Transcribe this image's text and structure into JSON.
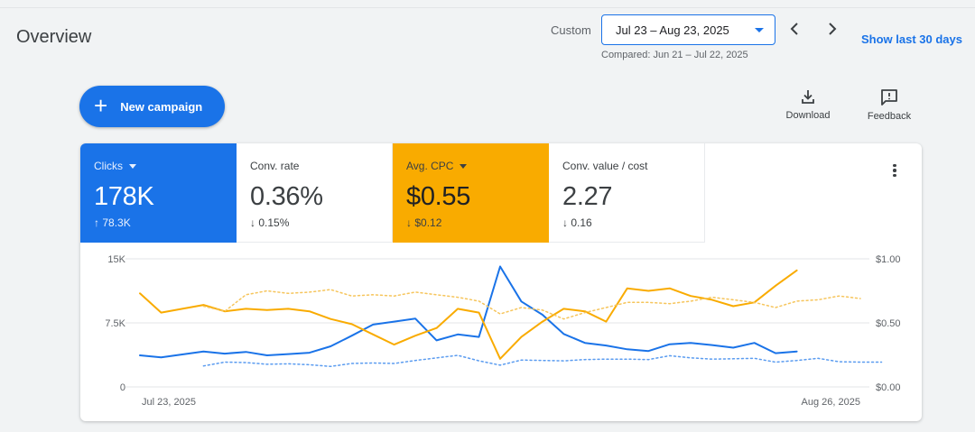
{
  "header": {
    "title": "Overview",
    "date_label": "Custom",
    "date_range": "Jul 23 – Aug 23, 2025",
    "compared": "Compared: Jun 21 – Jul 22, 2025",
    "show_last": "Show last 30 days"
  },
  "toolbar": {
    "new_campaign": "New campaign",
    "download": "Download",
    "feedback": "Feedback"
  },
  "metrics": [
    {
      "label": "Clicks",
      "value": "178K",
      "delta": "78.3K",
      "delta_dir": "up"
    },
    {
      "label": "Conv. rate",
      "value": "0.36%",
      "delta": "0.15%",
      "delta_dir": "down"
    },
    {
      "label": "Avg. CPC",
      "value": "$0.55",
      "delta": "$0.12",
      "delta_dir": "down"
    },
    {
      "label": "Conv. value / cost",
      "value": "2.27",
      "delta": "0.16",
      "delta_dir": "down"
    }
  ],
  "colors": {
    "blue": "#1a73e8",
    "blue_light": "#5b9cf0",
    "orange": "#f9ab00",
    "orange_light": "#f6c55c"
  },
  "chart_data": {
    "type": "line",
    "x_start_label": "Jul 23, 2025",
    "x_end_label": "Aug 26, 2025",
    "y_left_ticks": [
      "0",
      "7.5K",
      "15K"
    ],
    "y_left_range": [
      0,
      15000
    ],
    "y_right_ticks": [
      "$0.00",
      "$0.50",
      "$1.00"
    ],
    "y_right_range": [
      0,
      1.0
    ],
    "grid": true,
    "series": [
      {
        "axis": "left",
        "style": "solid",
        "color": "blue",
        "start_index": 0,
        "values": [
          3700,
          3450,
          3800,
          4150,
          3900,
          4100,
          3700,
          3850,
          4000,
          4750,
          6000,
          7300,
          7650,
          8000,
          5450,
          6150,
          5850,
          14100,
          10000,
          8450,
          6200,
          5150,
          4850,
          4400,
          4200,
          5000,
          5150,
          4900,
          4600,
          5150,
          3950,
          4150
        ]
      },
      {
        "axis": "left",
        "style": "dotted",
        "color": "blue_light",
        "start_index": 3,
        "values": [
          2450,
          2900,
          2850,
          2650,
          2700,
          2600,
          2400,
          2750,
          2800,
          2750,
          3100,
          3400,
          3700,
          3050,
          2550,
          3150,
          3100,
          3050,
          3200,
          3250,
          3250,
          3200,
          3650,
          3400,
          3250,
          3300,
          3350,
          2900,
          3100,
          3350,
          2950,
          2900,
          2900
        ]
      },
      {
        "axis": "right",
        "style": "solid",
        "color": "orange",
        "start_index": 0,
        "values": [
          0.73,
          0.58,
          0.61,
          0.64,
          0.59,
          0.61,
          0.6,
          0.61,
          0.59,
          0.53,
          0.49,
          0.41,
          0.33,
          0.4,
          0.46,
          0.61,
          0.58,
          0.22,
          0.39,
          0.51,
          0.61,
          0.59,
          0.51,
          0.77,
          0.75,
          0.77,
          0.71,
          0.68,
          0.63,
          0.66,
          0.79,
          0.91
        ]
      },
      {
        "axis": "right",
        "style": "dotted",
        "color": "orange_light",
        "start_index": 3,
        "values": [
          0.63,
          0.59,
          0.72,
          0.75,
          0.73,
          0.74,
          0.76,
          0.71,
          0.72,
          0.71,
          0.74,
          0.72,
          0.7,
          0.67,
          0.57,
          0.62,
          0.6,
          0.53,
          0.58,
          0.62,
          0.66,
          0.66,
          0.65,
          0.67,
          0.7,
          0.68,
          0.66,
          0.62,
          0.67,
          0.68,
          0.71,
          0.69
        ]
      }
    ]
  }
}
